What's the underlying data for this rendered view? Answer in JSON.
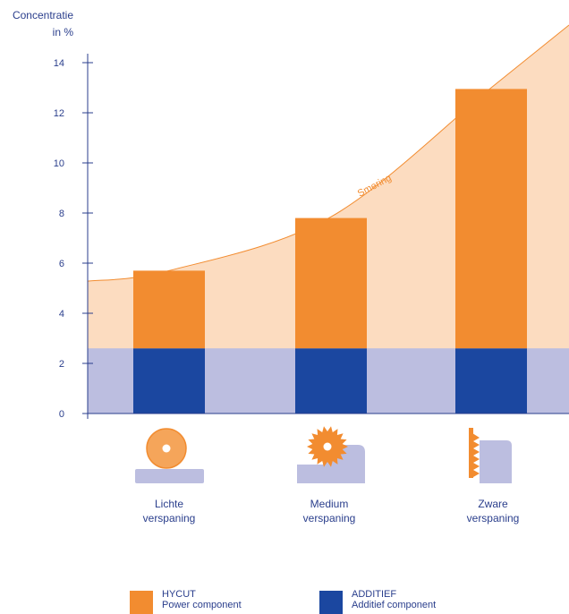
{
  "chart_data": {
    "type": "bar",
    "ylabel": [
      "Concentratie",
      "in %"
    ],
    "ylim": [
      0,
      14
    ],
    "yticks": [
      0,
      2,
      4,
      6,
      8,
      10,
      12,
      14
    ],
    "categories": [
      {
        "line1": "Lichte",
        "line2": "verspaning",
        "icon": "grinding-wheel-icon"
      },
      {
        "line1": "Medium",
        "line2": "verspaning",
        "icon": "saw-blade-icon"
      },
      {
        "line1": "Zware",
        "line2": "verspaning",
        "icon": "broach-tool-icon"
      }
    ],
    "series": [
      {
        "name": "ADDITIEF",
        "values": [
          2.6,
          2.6,
          2.6
        ],
        "color": "#1b47a0"
      },
      {
        "name": "HYCUT",
        "values": [
          3.1,
          5.2,
          10.35
        ],
        "color": "#f28c30"
      }
    ],
    "additive_band": {
      "value": 2.6,
      "color": "#bcbee0"
    },
    "lubrication_curve": {
      "label": "Smering",
      "fill_color": "#fcdcc0",
      "line_color": "#f28c30",
      "start_value": 5.28,
      "bar_values": [
        5.7,
        7.85,
        13.0
      ],
      "end_value": 15.5
    },
    "grid": false
  },
  "legend": [
    {
      "title": "HYCUT",
      "subtitle": "Power component",
      "color": "#f28c30"
    },
    {
      "title": "ADDITIEF",
      "subtitle": "Additief component",
      "color": "#1b47a0"
    }
  ]
}
